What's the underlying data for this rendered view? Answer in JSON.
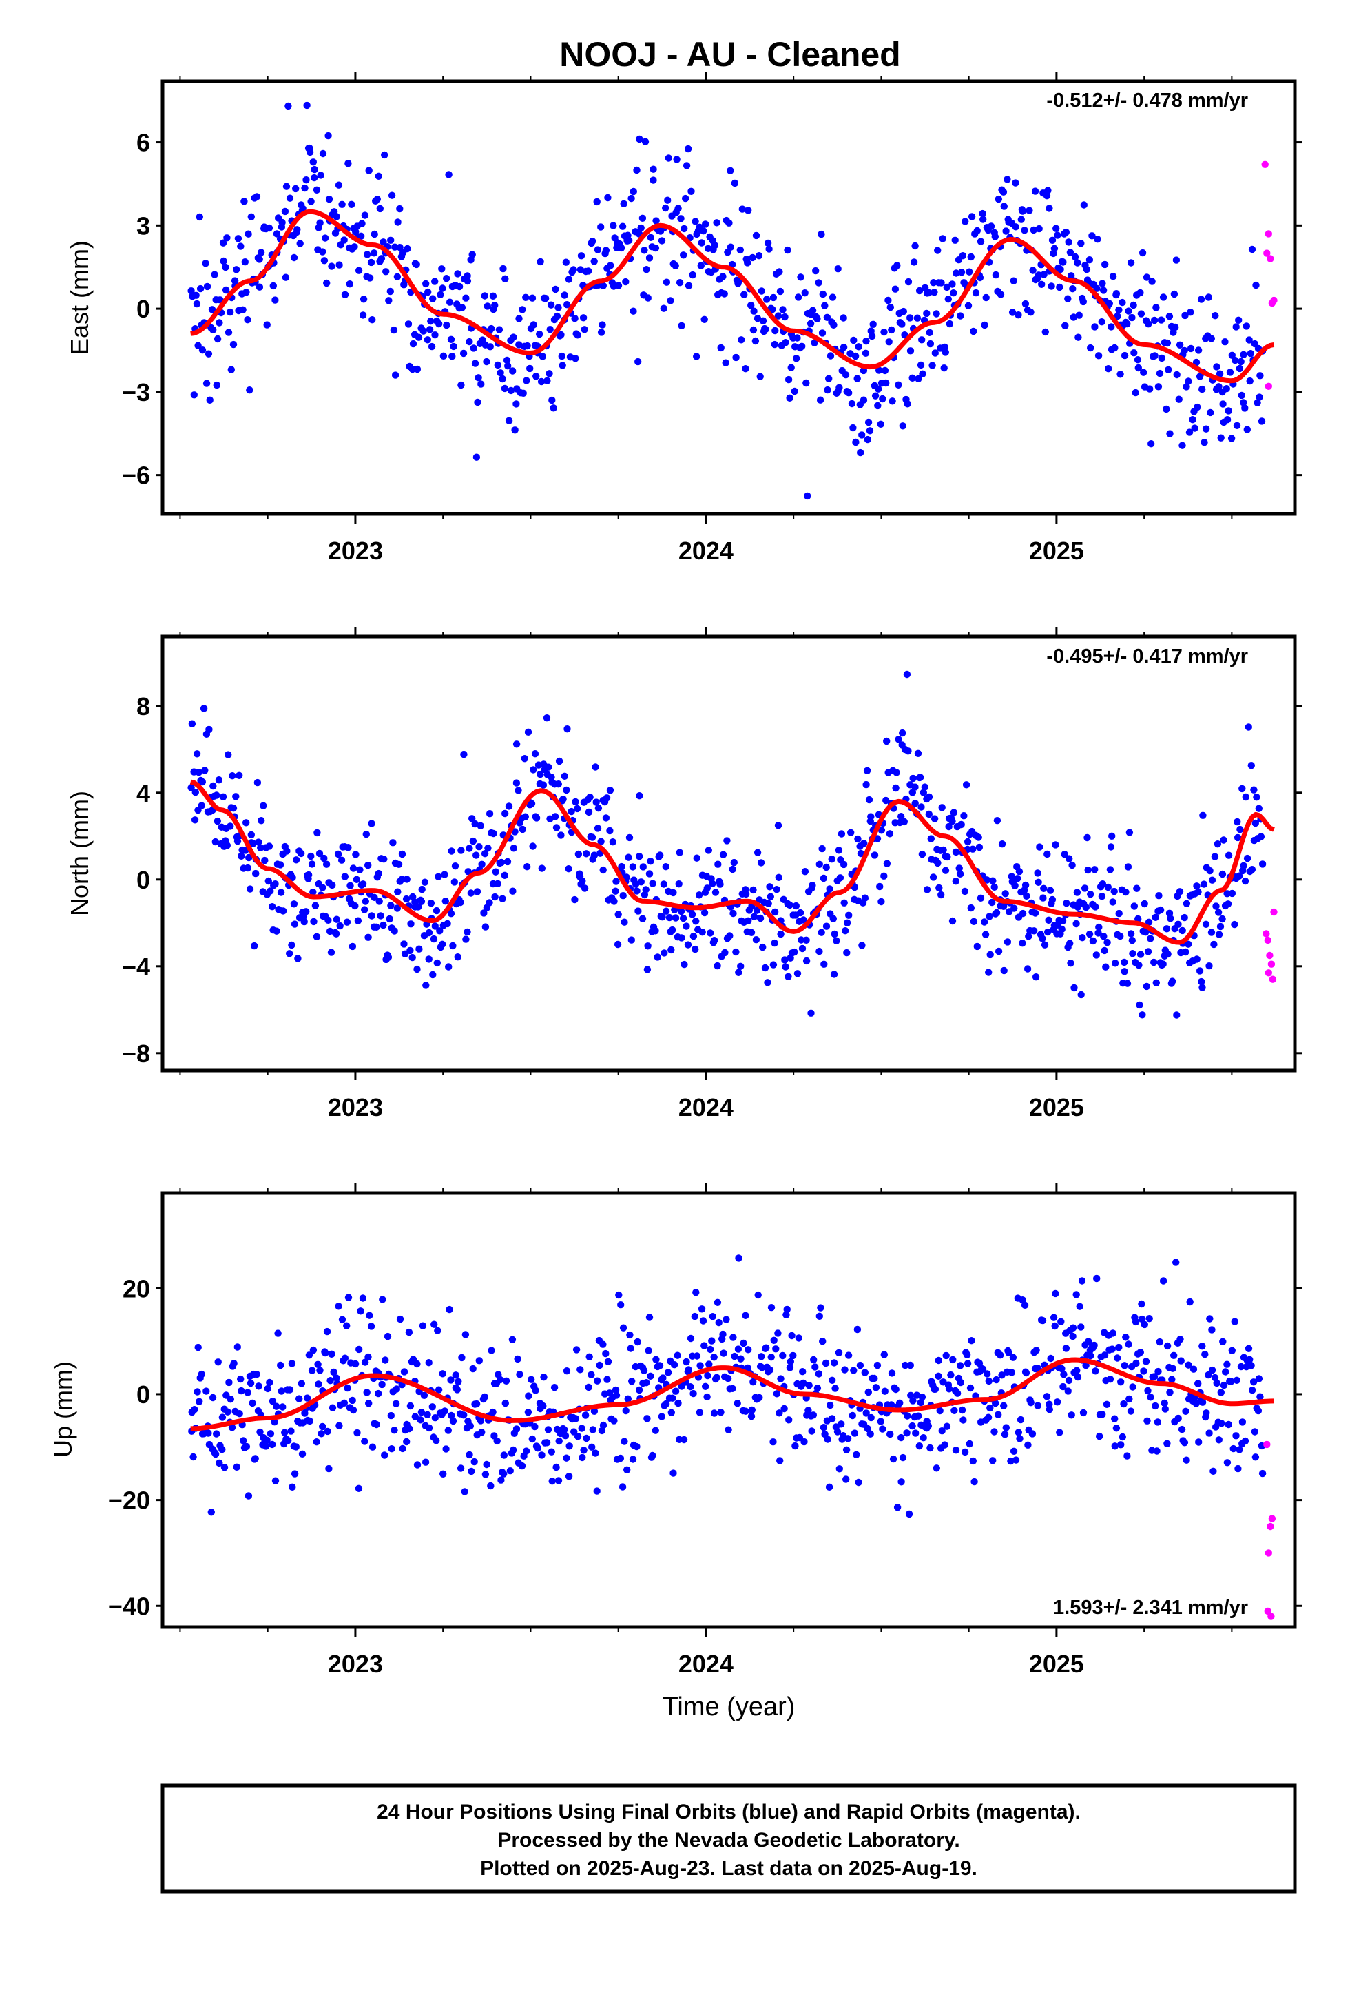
{
  "title": "NOOJ  - AU - Cleaned",
  "x_axis_label": "Time (year)",
  "footer": {
    "line1": "24 Hour Positions Using Final Orbits (blue) and Rapid Orbits (magenta).",
    "line2": "Processed by the Nevada Geodetic Laboratory.",
    "line3": "Plotted on 2025-Aug-23. Last data on 2025-Aug-19."
  },
  "colors": {
    "final_orbits": "#0000ff",
    "rapid_orbits": "#ff00ff",
    "model_fit": "#ff0000",
    "frame": "#000000"
  },
  "chart_data": [
    {
      "type": "scatter",
      "ylabel": "East (mm)",
      "rate_text": "-0.512+/- 0.478 mm/yr",
      "xlim": [
        2022.45,
        2025.68
      ],
      "ylim": [
        -7.4,
        8.2
      ],
      "yticks": [
        -6,
        -3,
        0,
        3,
        6
      ],
      "xticks": [
        2023,
        2024,
        2025
      ],
      "grid": false,
      "fit_curve": {
        "x": [
          2022.53,
          2022.7,
          2022.87,
          2023.05,
          2023.25,
          2023.5,
          2023.7,
          2023.87,
          2024.05,
          2024.25,
          2024.47,
          2024.65,
          2024.87,
          2025.05,
          2025.25,
          2025.5,
          2025.62
        ],
        "y": [
          -0.9,
          1.0,
          3.5,
          2.3,
          -0.2,
          -1.6,
          1.0,
          3.0,
          1.5,
          -0.8,
          -2.1,
          -0.5,
          2.5,
          1.0,
          -1.3,
          -2.6,
          -1.3
        ]
      },
      "series": [
        {
          "name": "Final Orbits",
          "mean": [
            [
              2022.53,
              -1.0
            ],
            [
              2022.7,
              1.2
            ],
            [
              2022.87,
              3.6
            ],
            [
              2023.05,
              2.4
            ],
            [
              2023.25,
              -0.3
            ],
            [
              2023.5,
              -1.8
            ],
            [
              2023.7,
              1.1
            ],
            [
              2023.87,
              3.1
            ],
            [
              2024.05,
              1.6
            ],
            [
              2024.25,
              -0.9
            ],
            [
              2024.47,
              -2.2
            ],
            [
              2024.65,
              -0.4
            ],
            [
              2024.87,
              2.5
            ],
            [
              2025.05,
              1.1
            ],
            [
              2025.25,
              -1.3
            ],
            [
              2025.5,
              -2.5
            ],
            [
              2025.59,
              -1.4
            ]
          ],
          "scatter": 1.5,
          "density": 300
        },
        {
          "name": "Rapid Orbits",
          "points": [
            [
              2025.595,
              5.2
            ],
            [
              2025.6,
              2.0
            ],
            [
              2025.605,
              2.7
            ],
            [
              2025.61,
              1.8
            ],
            [
              2025.615,
              0.2
            ],
            [
              2025.62,
              0.3
            ],
            [
              2025.605,
              -2.8
            ]
          ]
        }
      ]
    },
    {
      "type": "scatter",
      "ylabel": "North (mm)",
      "rate_text": "-0.495+/- 0.417 mm/yr",
      "xlim": [
        2022.45,
        2025.68
      ],
      "ylim": [
        -8.8,
        11.2
      ],
      "yticks": [
        -8,
        -4,
        0,
        4,
        8
      ],
      "xticks": [
        2023,
        2024,
        2025
      ],
      "grid": false,
      "fit_curve": {
        "x": [
          2022.53,
          2022.62,
          2022.75,
          2022.88,
          2023.05,
          2023.22,
          2023.35,
          2023.53,
          2023.68,
          2023.82,
          2023.97,
          2024.12,
          2024.25,
          2024.38,
          2024.55,
          2024.68,
          2024.85,
          2025.05,
          2025.22,
          2025.35,
          2025.47,
          2025.57,
          2025.62
        ],
        "y": [
          4.5,
          3.2,
          0.5,
          -0.8,
          -0.5,
          -1.9,
          0.3,
          4.1,
          1.6,
          -1.0,
          -1.3,
          -1.0,
          -2.4,
          -0.6,
          3.6,
          2.0,
          -1.0,
          -1.6,
          -2.0,
          -2.9,
          -0.5,
          3.0,
          2.3
        ]
      },
      "series": [
        {
          "name": "Final Orbits",
          "mean": [
            [
              2022.53,
              4.5
            ],
            [
              2022.62,
              3.2
            ],
            [
              2022.75,
              0.5
            ],
            [
              2022.88,
              -0.8
            ],
            [
              2023.05,
              -0.5
            ],
            [
              2023.22,
              -1.9
            ],
            [
              2023.35,
              0.3
            ],
            [
              2023.53,
              4.1
            ],
            [
              2023.68,
              1.6
            ],
            [
              2023.82,
              -1.0
            ],
            [
              2023.97,
              -1.3
            ],
            [
              2024.12,
              -1.0
            ],
            [
              2024.25,
              -2.4
            ],
            [
              2024.38,
              -0.6
            ],
            [
              2024.55,
              3.6
            ],
            [
              2024.68,
              2.0
            ],
            [
              2024.85,
              -1.0
            ],
            [
              2025.05,
              -1.6
            ],
            [
              2025.22,
              -2.0
            ],
            [
              2025.35,
              -2.9
            ],
            [
              2025.47,
              -0.5
            ],
            [
              2025.57,
              3.0
            ],
            [
              2025.59,
              2.5
            ]
          ],
          "scatter": 1.6,
          "density": 300
        },
        {
          "name": "Rapid Orbits",
          "points": [
            [
              2025.598,
              -2.5
            ],
            [
              2025.603,
              -2.8
            ],
            [
              2025.608,
              -3.5
            ],
            [
              2025.613,
              -3.9
            ],
            [
              2025.605,
              -4.3
            ],
            [
              2025.617,
              -4.6
            ],
            [
              2025.62,
              -1.5
            ]
          ]
        }
      ]
    },
    {
      "type": "scatter",
      "ylabel": "Up (mm)",
      "rate_text": "1.593+/- 2.341 mm/yr",
      "xlim": [
        2022.45,
        2025.68
      ],
      "ylim": [
        -44,
        38
      ],
      "yticks": [
        -40,
        -20,
        0,
        20
      ],
      "xticks": [
        2023,
        2024,
        2025
      ],
      "grid": false,
      "fit_curve": {
        "x": [
          2022.53,
          2022.75,
          2023.05,
          2023.45,
          2023.75,
          2024.05,
          2024.28,
          2024.55,
          2024.8,
          2025.05,
          2025.3,
          2025.5,
          2025.62
        ],
        "y": [
          -6.5,
          -4.5,
          3.5,
          -5.0,
          -2.0,
          5.0,
          0.0,
          -3.0,
          -1.0,
          6.5,
          2.0,
          -1.8,
          -1.3
        ]
      },
      "series": [
        {
          "name": "Final Orbits",
          "mean": [
            [
              2022.53,
              -6.5
            ],
            [
              2022.75,
              -4.5
            ],
            [
              2023.05,
              3.5
            ],
            [
              2023.45,
              -5.0
            ],
            [
              2023.75,
              -2.0
            ],
            [
              2024.05,
              5.0
            ],
            [
              2024.28,
              0.0
            ],
            [
              2024.55,
              -3.0
            ],
            [
              2024.8,
              -1.0
            ],
            [
              2025.05,
              6.5
            ],
            [
              2025.3,
              2.0
            ],
            [
              2025.5,
              -1.8
            ],
            [
              2025.59,
              -1.5
            ]
          ],
          "scatter": 7.0,
          "density": 300
        },
        {
          "name": "Rapid Orbits",
          "points": [
            [
              2025.6,
              -9.5
            ],
            [
              2025.605,
              -30.0
            ],
            [
              2025.61,
              -25.0
            ],
            [
              2025.615,
              -23.5
            ],
            [
              2025.603,
              -41.0
            ],
            [
              2025.612,
              -42.0
            ]
          ]
        }
      ]
    }
  ]
}
